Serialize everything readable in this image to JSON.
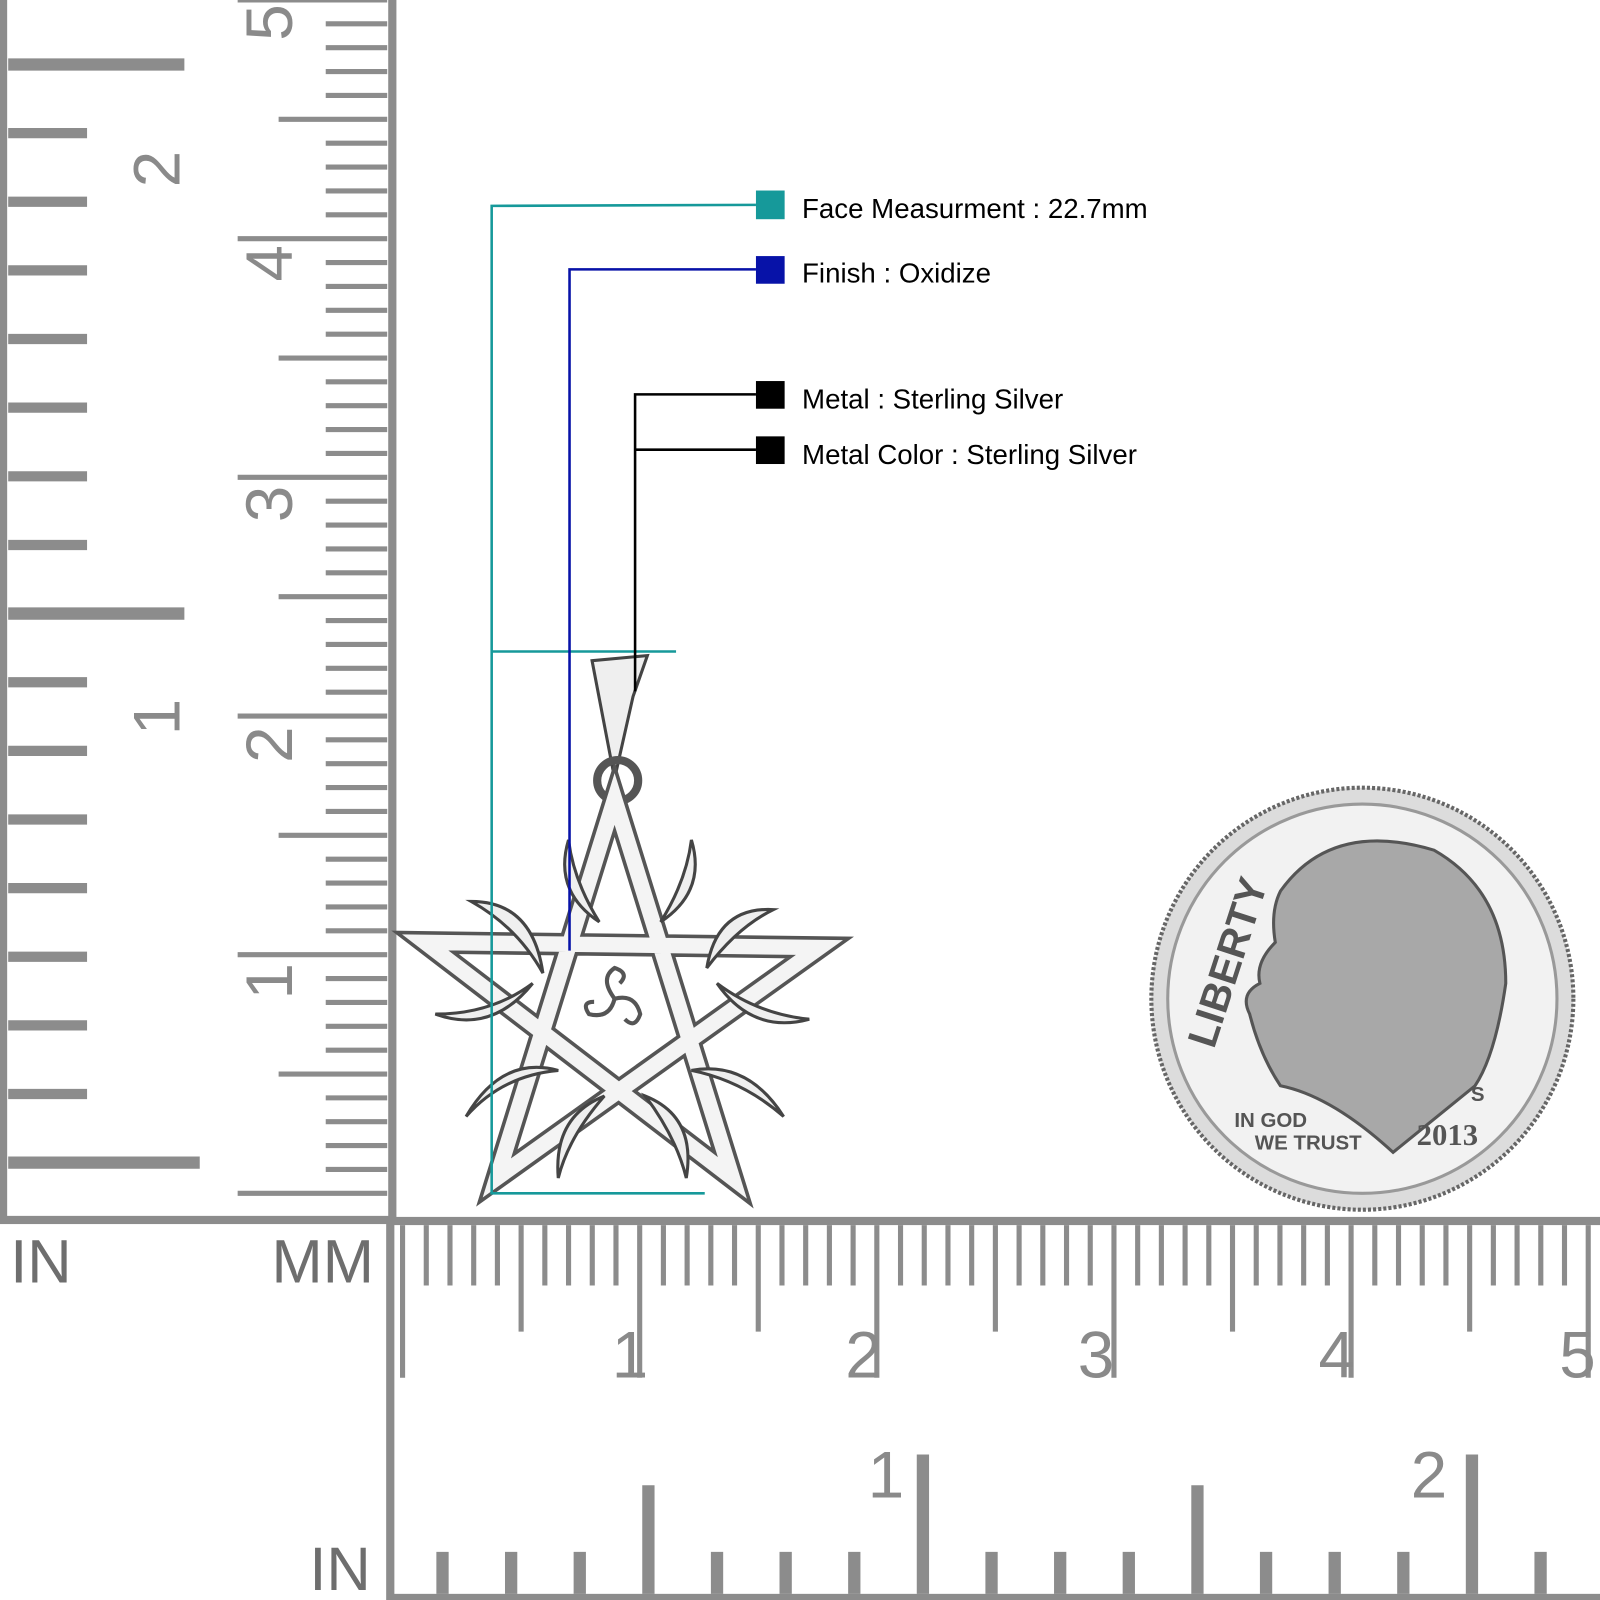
{
  "colors": {
    "ruler": "#8c8c8c",
    "face_measurement": "#16999a",
    "finish": "#0712a8",
    "metal": "#000000",
    "silver": "#d9d9d9"
  },
  "specs": [
    {
      "label": "Face Measurment : 22.7mm",
      "color": "#16999a"
    },
    {
      "label": "Finish : Oxidize",
      "color": "#0712a8"
    },
    {
      "label": "Metal : Sterling Silver",
      "color": "#000000"
    },
    {
      "label": "Metal Color : Sterling Silver",
      "color": "#000000"
    }
  ],
  "vertical_ruler": {
    "unit_in": "IN",
    "unit_mm": "MM",
    "mm_labels": [
      "5",
      "4",
      "3",
      "2",
      "1"
    ],
    "in_labels": [
      "2",
      "1"
    ]
  },
  "horizontal_ruler": {
    "unit_in": "IN",
    "mm_labels": [
      "1",
      "2",
      "3",
      "4",
      "5"
    ],
    "in_labels": [
      "1",
      "2"
    ]
  },
  "coin": {
    "legend": "LIBERTY",
    "motto_line1": "IN GOD",
    "motto_line2": "WE TRUST",
    "year": "2013",
    "mint_mark": "S"
  }
}
